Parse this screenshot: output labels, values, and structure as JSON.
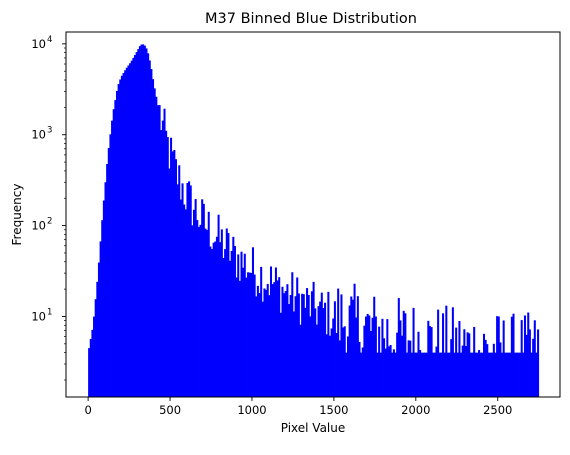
{
  "chart_data": {
    "type": "bar",
    "title": "M37 Binned Blue Distribution",
    "xlabel": "Pixel Value",
    "ylabel": "Frequency",
    "xlim": [
      -135,
      2880
    ],
    "ylim": [
      1.3,
      13500
    ],
    "yscale": "log",
    "grid": false,
    "legend": "none",
    "bar_color": "#0000ff",
    "bin_width": 10,
    "x_ticks": [
      {
        "value": 0,
        "label": "0"
      },
      {
        "value": 500,
        "label": "500"
      },
      {
        "value": 1000,
        "label": "1000"
      },
      {
        "value": 1500,
        "label": "1500"
      },
      {
        "value": 2000,
        "label": "2000"
      },
      {
        "value": 2500,
        "label": "2500"
      }
    ],
    "y_ticks": [
      {
        "value": 10,
        "base": "10",
        "exp": "1"
      },
      {
        "value": 100,
        "base": "10",
        "exp": "2"
      },
      {
        "value": 1000,
        "base": "10",
        "exp": "3"
      },
      {
        "value": 10000,
        "base": "10",
        "exp": "4"
      }
    ],
    "envelope": [
      [
        0,
        4
      ],
      [
        30,
        8
      ],
      [
        60,
        30
      ],
      [
        90,
        150
      ],
      [
        120,
        600
      ],
      [
        150,
        1700
      ],
      [
        180,
        3400
      ],
      [
        200,
        4300
      ],
      [
        230,
        5300
      ],
      [
        260,
        6300
      ],
      [
        290,
        7800
      ],
      [
        320,
        9800
      ],
      [
        340,
        9900
      ],
      [
        360,
        8600
      ],
      [
        380,
        6000
      ],
      [
        400,
        3600
      ],
      [
        430,
        1900
      ],
      [
        460,
        1100
      ],
      [
        500,
        600
      ],
      [
        550,
        330
      ],
      [
        600,
        210
      ],
      [
        650,
        150
      ],
      [
        700,
        110
      ],
      [
        800,
        70
      ],
      [
        900,
        45
      ],
      [
        1000,
        33
      ],
      [
        1100,
        25
      ],
      [
        1200,
        19
      ],
      [
        1300,
        15
      ],
      [
        1400,
        12
      ],
      [
        1500,
        10
      ],
      [
        1600,
        8.5
      ],
      [
        1700,
        7.3
      ],
      [
        1800,
        6.5
      ],
      [
        1900,
        6
      ],
      [
        2000,
        5.5
      ],
      [
        2100,
        5
      ],
      [
        2200,
        4.8
      ],
      [
        2300,
        4.5
      ],
      [
        2400,
        4.3
      ],
      [
        2500,
        4.1
      ],
      [
        2600,
        4
      ],
      [
        2750,
        4
      ]
    ]
  }
}
